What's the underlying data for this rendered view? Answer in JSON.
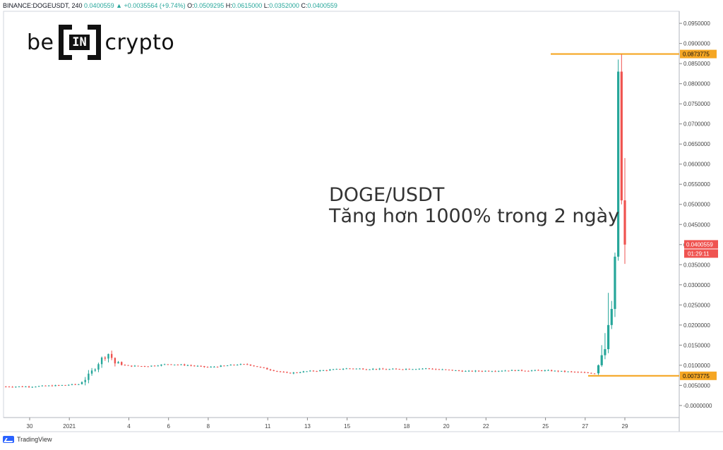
{
  "header": {
    "symbol": "BINANCE:DOGEUSDT, 240",
    "price": "0.0400559",
    "change": "+0.0035564 (+9.74%)",
    "open_label": "O:",
    "open": "0.0509295",
    "high_label": "H:",
    "high": "0.0615000",
    "low_label": "L:",
    "low": "0.0352000",
    "close_label": "C:",
    "close": "0.0400559"
  },
  "logo": {
    "left": "be",
    "box": "IN",
    "right": "crypto"
  },
  "annotation": {
    "line1": "DOGE/USDT",
    "line2": "Tăng hơn 1000% trong 2 ngày"
  },
  "footer": {
    "brand": "TradingView"
  },
  "colors": {
    "up": "#26a69a",
    "down": "#ef5350",
    "level": "#f5a623",
    "axis": "#888888"
  },
  "chart_data": {
    "type": "candlestick",
    "ylim": [
      -0.003,
      0.098
    ],
    "yticks": [
      "0.0950000",
      "0.0900000",
      "0.0850000",
      "0.0800000",
      "0.0750000",
      "0.0700000",
      "0.0650000",
      "0.0600000",
      "0.0550000",
      "0.0500000",
      "0.0450000",
      "0.0400000",
      "0.0350000",
      "0.0300000",
      "0.0250000",
      "0.0200000",
      "0.0150000",
      "0.0100000",
      "0.0050000",
      "-0.0000000"
    ],
    "ytick_values": [
      0.095,
      0.09,
      0.085,
      0.08,
      0.075,
      0.07,
      0.065,
      0.06,
      0.055,
      0.05,
      0.045,
      0.04,
      0.035,
      0.03,
      0.025,
      0.02,
      0.015,
      0.01,
      0.005,
      0.0
    ],
    "xticks": [
      "30",
      "2021",
      "4",
      "6",
      "8",
      "11",
      "13",
      "15",
      "18",
      "20",
      "22",
      "25",
      "27",
      "29"
    ],
    "xtick_days": [
      0,
      2,
      5,
      7,
      9,
      12,
      14,
      16,
      19,
      21,
      23,
      26,
      28,
      30
    ],
    "levels": [
      {
        "value": 0.0873775,
        "label": "0.0873775"
      },
      {
        "value": 0.0073775,
        "label": "0.0073775"
      }
    ],
    "last_price": {
      "value": 0.0400559,
      "label": "0.0400559",
      "countdown": "01:29:11"
    },
    "anchor_points": [
      [
        -1.2,
        0.0047
      ],
      [
        0.0,
        0.0047
      ],
      [
        1.5,
        0.005
      ],
      [
        2.5,
        0.0053
      ],
      [
        3.0,
        0.0075
      ],
      [
        3.6,
        0.0115
      ],
      [
        4.0,
        0.013
      ],
      [
        4.3,
        0.0105
      ],
      [
        5.0,
        0.0098
      ],
      [
        6.0,
        0.0098
      ],
      [
        7.0,
        0.0103
      ],
      [
        8.0,
        0.01
      ],
      [
        9.0,
        0.0095
      ],
      [
        10.5,
        0.0102
      ],
      [
        11.0,
        0.0102
      ],
      [
        12.0,
        0.009
      ],
      [
        13.0,
        0.008
      ],
      [
        14.0,
        0.0085
      ],
      [
        15.0,
        0.0088
      ],
      [
        16.0,
        0.0092
      ],
      [
        18.0,
        0.009
      ],
      [
        20.0,
        0.0092
      ],
      [
        22.0,
        0.0085
      ],
      [
        24.0,
        0.0087
      ],
      [
        26.0,
        0.0087
      ],
      [
        27.5,
        0.0083
      ],
      [
        28.5,
        0.008
      ]
    ],
    "spike_candles": [
      {
        "o": 0.008,
        "h": 0.0102,
        "l": 0.0076,
        "c": 0.01
      },
      {
        "o": 0.01,
        "h": 0.015,
        "l": 0.0096,
        "c": 0.0125
      },
      {
        "o": 0.0125,
        "h": 0.018,
        "l": 0.0115,
        "c": 0.014
      },
      {
        "o": 0.014,
        "h": 0.028,
        "l": 0.013,
        "c": 0.02
      },
      {
        "o": 0.02,
        "h": 0.026,
        "l": 0.019,
        "c": 0.024
      },
      {
        "o": 0.024,
        "h": 0.038,
        "l": 0.022,
        "c": 0.037
      },
      {
        "o": 0.037,
        "h": 0.086,
        "l": 0.036,
        "c": 0.083
      },
      {
        "o": 0.083,
        "h": 0.0873,
        "l": 0.05,
        "c": 0.051
      },
      {
        "o": 0.051,
        "h": 0.0615,
        "l": 0.0352,
        "c": 0.04
      }
    ]
  }
}
